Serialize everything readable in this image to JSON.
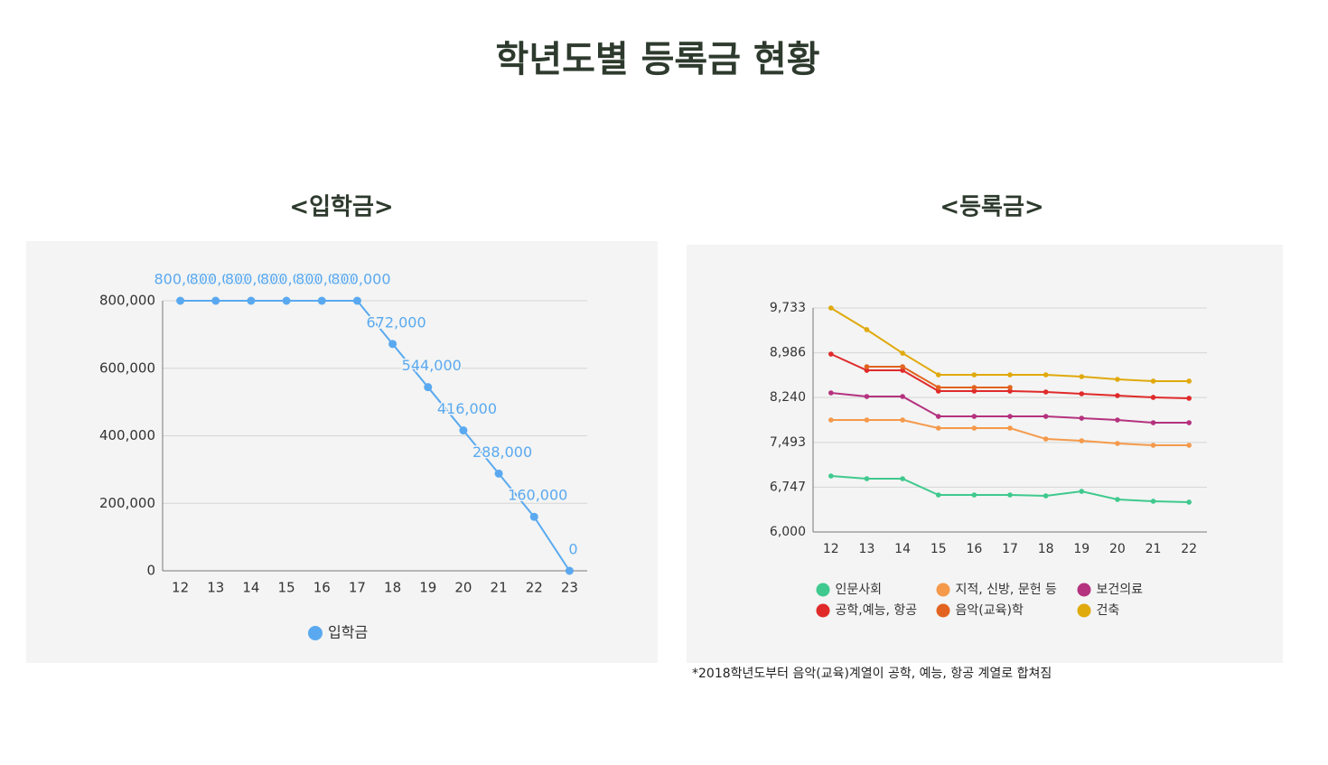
{
  "title": "학년도별 등록금 현황",
  "footnote": "*2018학년도부터 음악(교육)계열이 공학, 예능, 항공 계열로 합쳐짐",
  "chart_data": [
    {
      "type": "line",
      "title": "<입학금>",
      "grid": true,
      "legend": "bottom",
      "categories": [
        "12",
        "13",
        "14",
        "15",
        "16",
        "17",
        "18",
        "19",
        "20",
        "21",
        "22",
        "23"
      ],
      "ylim": [
        0,
        800000
      ],
      "yticks": [
        0,
        {
          "value": 200000,
          "label": "200,000"
        },
        {
          "value": 400000,
          "label": "400,000"
        },
        {
          "value": 600000,
          "label": "600,000"
        },
        {
          "value": 800000,
          "label": "800,000"
        }
      ],
      "series": [
        {
          "name": "입학금",
          "color": "#5aa9f0",
          "values": [
            800000,
            800000,
            800000,
            800000,
            800000,
            800000,
            672000,
            544000,
            416000,
            288000,
            160000,
            0
          ],
          "value_labels": [
            "800,000",
            "800,000",
            "800,000",
            "800,000",
            "800,000",
            "800,000",
            "672,000",
            "544,000",
            "416,000",
            "288,000",
            "160,000",
            "0"
          ]
        }
      ]
    },
    {
      "type": "line",
      "title": "<등록금>",
      "grid": true,
      "legend": "bottom",
      "categories": [
        "12",
        "13",
        "14",
        "15",
        "16",
        "17",
        "18",
        "19",
        "20",
        "21",
        "22"
      ],
      "ylim": [
        6000,
        9733
      ],
      "yticks": [
        {
          "value": 6000,
          "label": "6,000"
        },
        {
          "value": 6747,
          "label": "6,747"
        },
        {
          "value": 7493,
          "label": "7,493"
        },
        {
          "value": 8240,
          "label": "8,240"
        },
        {
          "value": 8986,
          "label": "8,986"
        },
        {
          "value": 9733,
          "label": "9,733"
        }
      ],
      "series": [
        {
          "name": "인문사회",
          "color": "#3fc98e",
          "values": [
            6933,
            6888,
            6888,
            6617,
            6617,
            6617,
            6602,
            6677,
            6542,
            6512,
            6497
          ]
        },
        {
          "name": "지적, 신방, 문헌 등",
          "color": "#f5994a",
          "values": [
            7866,
            7866,
            7866,
            7731,
            7731,
            7731,
            7550,
            7520,
            7475,
            7445,
            7445
          ]
        },
        {
          "name": "보건의료",
          "color": "#b5327f",
          "values": [
            8318,
            8258,
            8258,
            7926,
            7926,
            7926,
            7926,
            7896,
            7866,
            7821,
            7821
          ]
        },
        {
          "name": "공학,예능, 항공",
          "color": "#e02a2a",
          "values": [
            8965,
            8694,
            8694,
            8348,
            8348,
            8348,
            8333,
            8303,
            8273,
            8243,
            8228
          ]
        },
        {
          "name": "음악(교육)학",
          "color": "#e2631f",
          "values": [
            null,
            8754,
            8754,
            8408,
            8408,
            8408,
            null,
            null,
            null,
            null,
            null
          ]
        },
        {
          "name": "건축",
          "color": "#e0a90c",
          "values": [
            9733,
            9372,
            8980,
            8619,
            8619,
            8619,
            8619,
            8589,
            8544,
            8514,
            8514
          ]
        }
      ]
    }
  ]
}
